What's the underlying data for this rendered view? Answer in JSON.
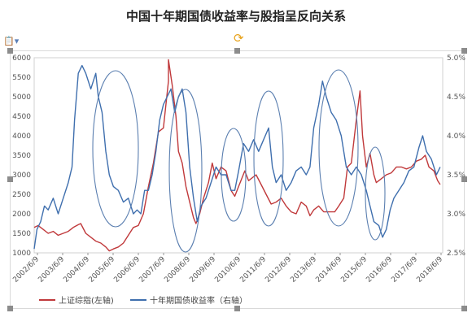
{
  "chart_data": {
    "type": "line",
    "title": "中国十年期国债收益率与股指呈反向关系",
    "x_ticks": [
      "2002/6/9",
      "2003/6/9",
      "2004/6/9",
      "2005/6/9",
      "2006/6/9",
      "2007/6/9",
      "2008/6/9",
      "2009/6/9",
      "2010/6/9",
      "2011/6/9",
      "2012/6/9",
      "2013/6/9",
      "2014/6/9",
      "2015/6/9",
      "2016/6/9",
      "2017/6/9",
      "2018/6/9"
    ],
    "y_left": {
      "min": 1000,
      "max": 6000,
      "ticks": [
        "1000",
        "1500",
        "2000",
        "2500",
        "3000",
        "3500",
        "4000",
        "4500",
        "5000",
        "5500",
        "6000"
      ]
    },
    "y_right": {
      "min": 2.5,
      "max": 5.0,
      "ticks": [
        "2.5%",
        "3.0%",
        "3.5%",
        "4.0%",
        "4.5%",
        "5.0%"
      ]
    },
    "grid": false,
    "legend_position": "bottom-left",
    "series": [
      {
        "name": "上证综指(左轴)",
        "color": "#c0393b",
        "axis": "left",
        "points": [
          [
            2002.44,
            1650
          ],
          [
            2002.6,
            1700
          ],
          [
            2002.8,
            1600
          ],
          [
            2003.0,
            1500
          ],
          [
            2003.2,
            1550
          ],
          [
            2003.4,
            1450
          ],
          [
            2003.6,
            1500
          ],
          [
            2003.8,
            1550
          ],
          [
            2004.0,
            1650
          ],
          [
            2004.2,
            1720
          ],
          [
            2004.3,
            1750
          ],
          [
            2004.5,
            1500
          ],
          [
            2004.7,
            1400
          ],
          [
            2004.9,
            1300
          ],
          [
            2005.1,
            1250
          ],
          [
            2005.3,
            1150
          ],
          [
            2005.44,
            1050
          ],
          [
            2005.6,
            1100
          ],
          [
            2005.8,
            1150
          ],
          [
            2006.0,
            1250
          ],
          [
            2006.2,
            1450
          ],
          [
            2006.4,
            1650
          ],
          [
            2006.6,
            1700
          ],
          [
            2006.8,
            2000
          ],
          [
            2007.0,
            2700
          ],
          [
            2007.2,
            3300
          ],
          [
            2007.4,
            4100
          ],
          [
            2007.6,
            4200
          ],
          [
            2007.8,
            5400
          ],
          [
            2007.8,
            5950
          ],
          [
            2007.95,
            5300
          ],
          [
            2008.1,
            4500
          ],
          [
            2008.2,
            3600
          ],
          [
            2008.35,
            3300
          ],
          [
            2008.5,
            2700
          ],
          [
            2008.65,
            2300
          ],
          [
            2008.8,
            1900
          ],
          [
            2008.9,
            1750
          ],
          [
            2009.05,
            2000
          ],
          [
            2009.2,
            2400
          ],
          [
            2009.4,
            2800
          ],
          [
            2009.55,
            3300
          ],
          [
            2009.7,
            2900
          ],
          [
            2009.9,
            3200
          ],
          [
            2010.1,
            3100
          ],
          [
            2010.3,
            2600
          ],
          [
            2010.45,
            2450
          ],
          [
            2010.6,
            2700
          ],
          [
            2010.85,
            3100
          ],
          [
            2011.0,
            2850
          ],
          [
            2011.3,
            3000
          ],
          [
            2011.5,
            2750
          ],
          [
            2011.7,
            2500
          ],
          [
            2011.9,
            2250
          ],
          [
            2012.1,
            2300
          ],
          [
            2012.3,
            2400
          ],
          [
            2012.5,
            2200
          ],
          [
            2012.7,
            2050
          ],
          [
            2012.9,
            2000
          ],
          [
            2013.1,
            2300
          ],
          [
            2013.3,
            2200
          ],
          [
            2013.45,
            1950
          ],
          [
            2013.6,
            2100
          ],
          [
            2013.8,
            2200
          ],
          [
            2014.0,
            2050
          ],
          [
            2014.2,
            2050
          ],
          [
            2014.44,
            2050
          ],
          [
            2014.6,
            2200
          ],
          [
            2014.8,
            2400
          ],
          [
            2014.95,
            3200
          ],
          [
            2015.1,
            3300
          ],
          [
            2015.3,
            4400
          ],
          [
            2015.45,
            5150
          ],
          [
            2015.55,
            4000
          ],
          [
            2015.7,
            3200
          ],
          [
            2015.85,
            3550
          ],
          [
            2016.0,
            3000
          ],
          [
            2016.1,
            2800
          ],
          [
            2016.3,
            2900
          ],
          [
            2016.5,
            3000
          ],
          [
            2016.7,
            3050
          ],
          [
            2016.9,
            3200
          ],
          [
            2017.1,
            3200
          ],
          [
            2017.3,
            3150
          ],
          [
            2017.5,
            3200
          ],
          [
            2017.7,
            3350
          ],
          [
            2017.9,
            3400
          ],
          [
            2018.05,
            3500
          ],
          [
            2018.2,
            3200
          ],
          [
            2018.4,
            3100
          ],
          [
            2018.55,
            2850
          ],
          [
            2018.65,
            2750
          ]
        ]
      },
      {
        "name": "十年期国债收益率（右轴）",
        "color": "#3f6fae",
        "axis": "right",
        "points": [
          [
            2002.44,
            2.55
          ],
          [
            2002.55,
            2.8
          ],
          [
            2002.7,
            2.9
          ],
          [
            2002.85,
            3.1
          ],
          [
            2003.0,
            3.05
          ],
          [
            2003.2,
            3.2
          ],
          [
            2003.4,
            3.0
          ],
          [
            2003.6,
            3.2
          ],
          [
            2003.8,
            3.4
          ],
          [
            2003.95,
            3.6
          ],
          [
            2004.05,
            4.2
          ],
          [
            2004.2,
            4.8
          ],
          [
            2004.35,
            4.9
          ],
          [
            2004.5,
            4.8
          ],
          [
            2004.7,
            4.6
          ],
          [
            2004.9,
            4.8
          ],
          [
            2005.0,
            4.5
          ],
          [
            2005.15,
            4.3
          ],
          [
            2005.3,
            3.8
          ],
          [
            2005.44,
            3.5
          ],
          [
            2005.6,
            3.35
          ],
          [
            2005.8,
            3.3
          ],
          [
            2006.0,
            3.15
          ],
          [
            2006.2,
            3.2
          ],
          [
            2006.4,
            3.0
          ],
          [
            2006.55,
            3.05
          ],
          [
            2006.7,
            3.0
          ],
          [
            2006.85,
            3.3
          ],
          [
            2007.0,
            3.3
          ],
          [
            2007.15,
            3.5
          ],
          [
            2007.3,
            3.8
          ],
          [
            2007.45,
            4.2
          ],
          [
            2007.6,
            4.4
          ],
          [
            2007.75,
            4.5
          ],
          [
            2007.9,
            4.6
          ],
          [
            2008.05,
            4.3
          ],
          [
            2008.2,
            4.5
          ],
          [
            2008.35,
            4.6
          ],
          [
            2008.5,
            4.3
          ],
          [
            2008.65,
            3.6
          ],
          [
            2008.8,
            3.2
          ],
          [
            2008.95,
            2.9
          ],
          [
            2009.1,
            3.1
          ],
          [
            2009.3,
            3.2
          ],
          [
            2009.5,
            3.4
          ],
          [
            2009.7,
            3.6
          ],
          [
            2009.9,
            3.5
          ],
          [
            2010.1,
            3.5
          ],
          [
            2010.3,
            3.3
          ],
          [
            2010.45,
            3.3
          ],
          [
            2010.6,
            3.55
          ],
          [
            2010.8,
            3.9
          ],
          [
            2011.0,
            3.8
          ],
          [
            2011.2,
            3.95
          ],
          [
            2011.4,
            3.8
          ],
          [
            2011.6,
            3.95
          ],
          [
            2011.8,
            4.1
          ],
          [
            2011.95,
            3.6
          ],
          [
            2012.1,
            3.4
          ],
          [
            2012.3,
            3.5
          ],
          [
            2012.5,
            3.3
          ],
          [
            2012.7,
            3.4
          ],
          [
            2012.9,
            3.55
          ],
          [
            2013.1,
            3.6
          ],
          [
            2013.3,
            3.5
          ],
          [
            2013.45,
            3.6
          ],
          [
            2013.6,
            4.1
          ],
          [
            2013.8,
            4.4
          ],
          [
            2013.95,
            4.7
          ],
          [
            2014.1,
            4.5
          ],
          [
            2014.3,
            4.3
          ],
          [
            2014.5,
            4.2
          ],
          [
            2014.7,
            4.0
          ],
          [
            2014.9,
            3.6
          ],
          [
            2015.1,
            3.5
          ],
          [
            2015.3,
            3.6
          ],
          [
            2015.5,
            3.5
          ],
          [
            2015.7,
            3.3
          ],
          [
            2015.85,
            3.1
          ],
          [
            2016.0,
            2.9
          ],
          [
            2016.2,
            2.85
          ],
          [
            2016.35,
            2.7
          ],
          [
            2016.5,
            2.8
          ],
          [
            2016.65,
            3.05
          ],
          [
            2016.8,
            3.2
          ],
          [
            2017.0,
            3.3
          ],
          [
            2017.2,
            3.4
          ],
          [
            2017.4,
            3.55
          ],
          [
            2017.6,
            3.6
          ],
          [
            2017.8,
            3.85
          ],
          [
            2017.95,
            4.0
          ],
          [
            2018.1,
            3.8
          ],
          [
            2018.3,
            3.7
          ],
          [
            2018.5,
            3.5
          ],
          [
            2018.65,
            3.6
          ]
        ]
      }
    ]
  }
}
